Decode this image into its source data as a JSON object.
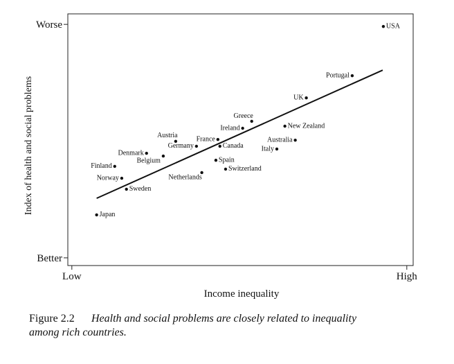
{
  "chart_data": {
    "type": "scatter",
    "x_label": "Income inequality",
    "y_label": "Index of health and social problems",
    "points": {
      "labels": [
        "USA",
        "Portugal",
        "UK",
        "Greece",
        "Ireland",
        "New Zealand",
        "Australia",
        "Italy",
        "France",
        "Canada",
        "Austria",
        "Germany",
        "Denmark",
        "Belgium",
        "Spain",
        "Switzerland",
        "Netherlands",
        "Finland",
        "Norway",
        "Sweden",
        "Japan"
      ],
      "x": [
        93.0,
        83.7,
        70.0,
        53.7,
        51.0,
        63.6,
        66.7,
        61.2,
        43.6,
        44.2,
        31.0,
        37.2,
        22.3,
        27.3,
        43.0,
        45.9,
        38.8,
        12.8,
        14.9,
        16.3,
        7.4
      ],
      "y": [
        99.1,
        78.0,
        68.5,
        58.5,
        55.5,
        56.4,
        50.4,
        46.6,
        50.7,
        47.8,
        49.9,
        47.8,
        44.8,
        43.6,
        41.8,
        38.0,
        36.5,
        39.2,
        34.1,
        29.4,
        18.4
      ],
      "color": "#111111"
    },
    "trend_line": {
      "x": [
        7.4,
        92.8
      ],
      "y": [
        25.5,
        80.4
      ],
      "color": "#111111"
    },
    "xlim": [
      -1.2,
      101.9
    ],
    "ylim": [
      -3.3,
      104.5
    ],
    "xticks": [
      {
        "value": 0,
        "label": "Low"
      },
      {
        "value": 100,
        "label": "High"
      }
    ],
    "yticks": [
      {
        "value": 0,
        "label": "Better"
      },
      {
        "value": 100,
        "label": "Worse"
      }
    ],
    "grid": false
  },
  "caption": {
    "label": "Figure 2.2",
    "lines": [
      "Health and social problems are closely related to inequality",
      "among rich countries."
    ]
  }
}
